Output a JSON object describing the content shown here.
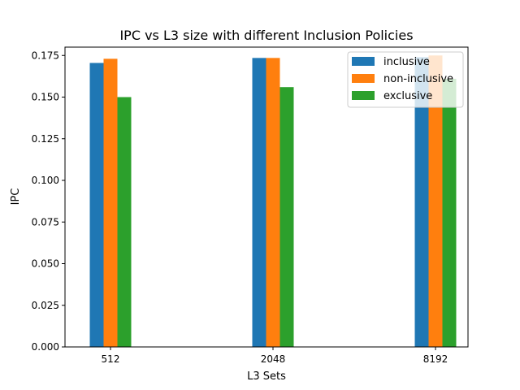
{
  "chart_data": {
    "type": "bar",
    "title": "IPC vs L3 size with different Inclusion Policies",
    "xlabel": "L3 Sets",
    "ylabel": "IPC",
    "categories": [
      "512",
      "2048",
      "8192"
    ],
    "ylim": [
      0,
      0.18
    ],
    "yticks": [
      "0.000",
      "0.025",
      "0.050",
      "0.075",
      "0.100",
      "0.125",
      "0.150",
      "0.175"
    ],
    "grid": false,
    "legend_position": "top-right",
    "series": [
      {
        "name": "inclusive",
        "color": "#1f77b4",
        "values": [
          0.1705,
          0.1735,
          0.174
        ]
      },
      {
        "name": "non-inclusive",
        "color": "#ff7f0e",
        "values": [
          0.173,
          0.1735,
          0.175
        ]
      },
      {
        "name": "exclusive",
        "color": "#2ca02c",
        "values": [
          0.15,
          0.156,
          0.161
        ]
      }
    ]
  }
}
